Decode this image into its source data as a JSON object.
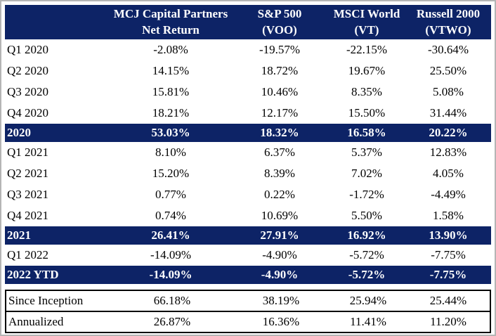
{
  "colors": {
    "navy": "#0d2366",
    "frame_gray": "#b5b5b5",
    "footer_border": "#000000",
    "header_text": "#ffffff",
    "body_text": "#000000"
  },
  "table": {
    "header": {
      "columns": [
        {
          "line1": "MCJ Capital Partners",
          "line2": "Net Return"
        },
        {
          "line1": "S&P 500",
          "line2": "(VOO)"
        },
        {
          "line1": "MSCI World",
          "line2": "(VT)"
        },
        {
          "line1": "Russell 2000",
          "line2": "(VTWO)"
        }
      ]
    },
    "rows": [
      {
        "label": "Q1 2020",
        "type": "data",
        "values": [
          "-2.08%",
          "-19.57%",
          "-22.15%",
          "-30.64%"
        ]
      },
      {
        "label": "Q2 2020",
        "type": "data",
        "values": [
          "14.15%",
          "18.72%",
          "19.67%",
          "25.50%"
        ]
      },
      {
        "label": "Q3 2020",
        "type": "data",
        "values": [
          "15.81%",
          "10.46%",
          "8.35%",
          "5.08%"
        ]
      },
      {
        "label": "Q4 2020",
        "type": "data",
        "values": [
          "18.21%",
          "12.17%",
          "15.50%",
          "31.44%"
        ]
      },
      {
        "label": "2020",
        "type": "summary",
        "values": [
          "53.03%",
          "18.32%",
          "16.58%",
          "20.22%"
        ]
      },
      {
        "label": "Q1 2021",
        "type": "data",
        "values": [
          "8.10%",
          "6.37%",
          "5.37%",
          "12.83%"
        ]
      },
      {
        "label": "Q2 2021",
        "type": "data",
        "values": [
          "15.20%",
          "8.39%",
          "7.02%",
          "4.05%"
        ]
      },
      {
        "label": "Q3 2021",
        "type": "data",
        "values": [
          "0.77%",
          "0.22%",
          "-1.72%",
          "-4.49%"
        ]
      },
      {
        "label": "Q4 2021",
        "type": "data",
        "values": [
          "0.74%",
          "10.69%",
          "5.50%",
          "1.58%"
        ]
      },
      {
        "label": "2021",
        "type": "summary",
        "values": [
          "26.41%",
          "27.91%",
          "16.92%",
          "13.90%"
        ]
      },
      {
        "label": "Q1 2022",
        "type": "data",
        "values": [
          "-14.09%",
          "-4.90%",
          "-5.72%",
          "-7.75%"
        ]
      },
      {
        "label": "2022 YTD",
        "type": "summary",
        "values": [
          "-14.09%",
          "-4.90%",
          "-5.72%",
          "-7.75%"
        ]
      }
    ],
    "footer_rows": [
      {
        "label": "Since Inception",
        "values": [
          "66.18%",
          "38.19%",
          "25.94%",
          "25.44%"
        ]
      },
      {
        "label": "Annualized",
        "values": [
          "26.87%",
          "16.36%",
          "11.41%",
          "11.20%"
        ]
      }
    ]
  },
  "chart_data": {
    "type": "table",
    "columns": [
      "",
      "MCJ Capital Partners Net Return",
      "S&P 500 (VOO)",
      "MSCI World (VT)",
      "Russell 2000 (VTWO)"
    ],
    "rows": [
      [
        "Q1 2020",
        -2.08,
        -19.57,
        -22.15,
        -30.64
      ],
      [
        "Q2 2020",
        14.15,
        18.72,
        19.67,
        25.5
      ],
      [
        "Q3 2020",
        15.81,
        10.46,
        8.35,
        5.08
      ],
      [
        "Q4 2020",
        18.21,
        12.17,
        15.5,
        31.44
      ],
      [
        "2020",
        53.03,
        18.32,
        16.58,
        20.22
      ],
      [
        "Q1 2021",
        8.1,
        6.37,
        5.37,
        12.83
      ],
      [
        "Q2 2021",
        15.2,
        8.39,
        7.02,
        4.05
      ],
      [
        "Q3 2021",
        0.77,
        0.22,
        -1.72,
        -4.49
      ],
      [
        "Q4 2021",
        0.74,
        10.69,
        5.5,
        1.58
      ],
      [
        "2021",
        26.41,
        27.91,
        16.92,
        13.9
      ],
      [
        "Q1 2022",
        -14.09,
        -4.9,
        -5.72,
        -7.75
      ],
      [
        "2022 YTD",
        -14.09,
        -4.9,
        -5.72,
        -7.75
      ],
      [
        "Since Inception",
        66.18,
        38.19,
        25.94,
        25.44
      ],
      [
        "Annualized",
        26.87,
        16.36,
        11.41,
        11.2
      ]
    ],
    "units": "percent",
    "highlighted_rows": [
      "2020",
      "2021",
      "2022 YTD"
    ],
    "boxed_rows": [
      "Since Inception",
      "Annualized"
    ]
  }
}
